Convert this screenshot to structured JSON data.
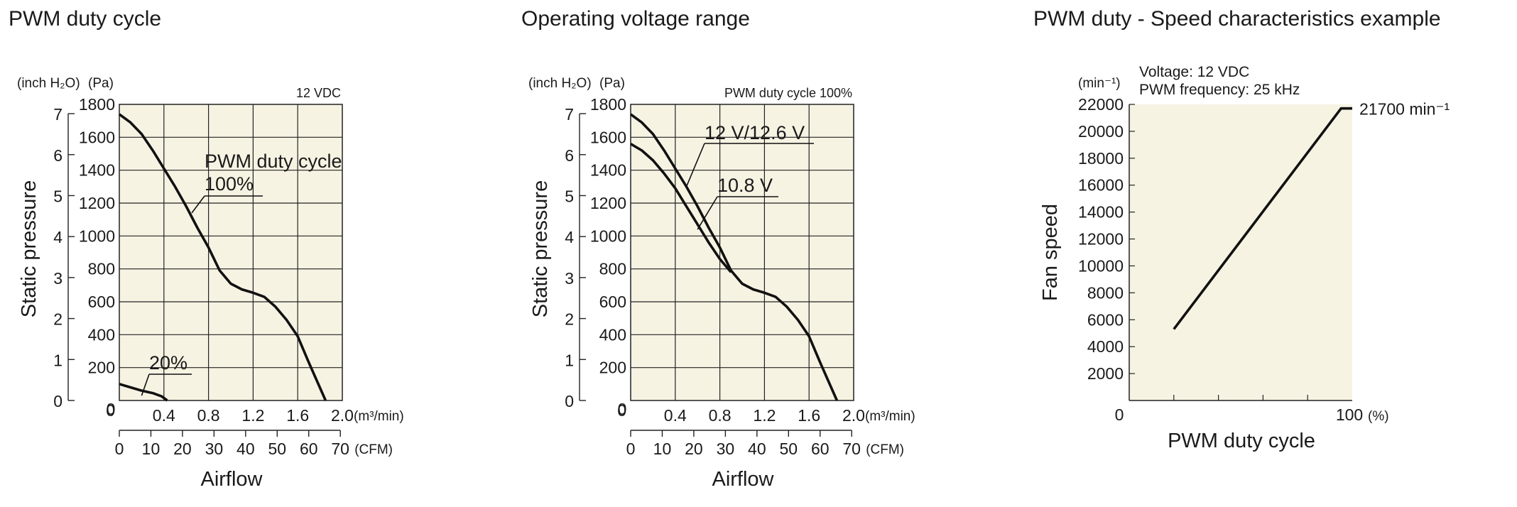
{
  "panels": [
    {
      "title": "PWM duty cycle"
    },
    {
      "title": "Operating voltage range"
    },
    {
      "title": "PWM duty - Speed characteristics example"
    }
  ],
  "colors": {
    "plot_bg": "#f7f3e3",
    "line": "#111111",
    "grid": "#222222"
  },
  "chart_data": [
    {
      "type": "line",
      "title": "PWM duty cycle",
      "note": "12 VDC",
      "xlabel": "Airflow",
      "ylabel": "Static pressure",
      "x_unit": "(m³/min)",
      "x2_unit": "(CFM)",
      "y_unit": "(Pa)",
      "y2_unit": "(inch H₂O)",
      "xlim": [
        0,
        2.0
      ],
      "ylim": [
        0,
        1800
      ],
      "x_ticks": [
        0,
        0.4,
        0.8,
        1.2,
        1.6,
        2.0
      ],
      "x_tick_labels": [
        "0",
        "0.4",
        "0.8",
        "1.2",
        "1.6",
        "2.0"
      ],
      "y_ticks": [
        200,
        400,
        600,
        800,
        1000,
        1200,
        1400,
        1600,
        1800
      ],
      "y_tick_labels": [
        "200",
        "400",
        "600",
        "800",
        "1000",
        "1200",
        "1400",
        "1600",
        "1800"
      ],
      "x2_ticks": [
        0,
        10,
        20,
        30,
        40,
        50,
        60,
        70
      ],
      "y2_ticks": [
        0,
        1,
        2,
        3,
        4,
        5,
        6,
        7
      ],
      "grid": true,
      "series": [
        {
          "name": "PWM duty cycle 100%",
          "label_lines": [
            "PWM duty cycle",
            "100%"
          ],
          "x": [
            0,
            0.1,
            0.2,
            0.3,
            0.4,
            0.5,
            0.6,
            0.7,
            0.8,
            0.9,
            1.0,
            1.1,
            1.2,
            1.3,
            1.4,
            1.5,
            1.6,
            1.7,
            1.85
          ],
          "y": [
            1740,
            1690,
            1620,
            1520,
            1410,
            1300,
            1180,
            1050,
            930,
            790,
            710,
            675,
            655,
            630,
            570,
            490,
            390,
            230,
            0
          ]
        },
        {
          "name": "20%",
          "label_lines": [
            "20%"
          ],
          "x": [
            0,
            0.1,
            0.2,
            0.3,
            0.38,
            0.43
          ],
          "y": [
            100,
            80,
            60,
            45,
            25,
            0
          ]
        }
      ]
    },
    {
      "type": "line",
      "title": "Operating voltage range",
      "note": "PWM duty cycle 100%",
      "xlabel": "Airflow",
      "ylabel": "Static pressure",
      "x_unit": "(m³/min)",
      "x2_unit": "(CFM)",
      "y_unit": "(Pa)",
      "y2_unit": "(inch H₂O)",
      "xlim": [
        0,
        2.0
      ],
      "ylim": [
        0,
        1800
      ],
      "x_ticks": [
        0,
        0.4,
        0.8,
        1.2,
        1.6,
        2.0
      ],
      "x_tick_labels": [
        "0",
        "0.4",
        "0.8",
        "1.2",
        "1.6",
        "2.0"
      ],
      "y_ticks": [
        200,
        400,
        600,
        800,
        1000,
        1200,
        1400,
        1600,
        1800
      ],
      "y_tick_labels": [
        "200",
        "400",
        "600",
        "800",
        "1000",
        "1200",
        "1400",
        "1600",
        "1800"
      ],
      "x2_ticks": [
        0,
        10,
        20,
        30,
        40,
        50,
        60,
        70
      ],
      "y2_ticks": [
        0,
        1,
        2,
        3,
        4,
        5,
        6,
        7
      ],
      "grid": true,
      "series": [
        {
          "name": "12 V/12.6 V",
          "label_lines": [
            "12 V/12.6 V"
          ],
          "x": [
            0,
            0.1,
            0.2,
            0.3,
            0.4,
            0.5,
            0.6,
            0.7,
            0.8,
            0.9,
            1.0,
            1.1,
            1.2,
            1.3,
            1.4,
            1.5,
            1.6,
            1.7,
            1.85
          ],
          "y": [
            1740,
            1690,
            1620,
            1520,
            1410,
            1300,
            1180,
            1050,
            930,
            790,
            710,
            675,
            655,
            630,
            570,
            490,
            390,
            230,
            0
          ]
        },
        {
          "name": "10.8 V",
          "label_lines": [
            "10.8 V"
          ],
          "x": [
            0,
            0.1,
            0.2,
            0.3,
            0.4,
            0.5,
            0.6,
            0.7,
            0.8,
            0.9
          ],
          "y": [
            1560,
            1520,
            1460,
            1380,
            1290,
            1180,
            1070,
            960,
            860,
            780
          ]
        }
      ]
    },
    {
      "type": "line",
      "title": "PWM duty - Speed characteristics example",
      "xlabel": "PWM duty cycle",
      "ylabel": "Fan speed",
      "y_unit": "(min⁻¹)",
      "x_unit": "(%)",
      "annotations": [
        "Voltage: 12 VDC",
        "PWM frequency: 25 kHz"
      ],
      "end_label": "21700 min⁻¹",
      "xlim": [
        0,
        100
      ],
      "ylim": [
        0,
        22000
      ],
      "x_tick_labels": [
        "0",
        "100"
      ],
      "y_ticks": [
        2000,
        4000,
        6000,
        8000,
        10000,
        12000,
        14000,
        16000,
        18000,
        20000,
        22000
      ],
      "y_tick_labels": [
        "2000",
        "4000",
        "6000",
        "8000",
        "10000",
        "12000",
        "14000",
        "16000",
        "18000",
        "20000",
        "22000"
      ],
      "grid": false,
      "series": [
        {
          "name": "Fan speed",
          "x": [
            20,
            95,
            100
          ],
          "y": [
            5300,
            21700,
            21700
          ]
        }
      ]
    }
  ]
}
